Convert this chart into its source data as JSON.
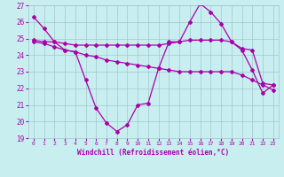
{
  "xlabel": "Windchill (Refroidissement éolien,°C)",
  "background_color": "#c8eef0",
  "grid_color": "#a0c8cc",
  "line_color": "#aa00aa",
  "xlim": [
    -0.5,
    23.5
  ],
  "ylim": [
    19,
    27
  ],
  "yticks": [
    19,
    20,
    21,
    22,
    23,
    24,
    25,
    26,
    27
  ],
  "xticks": [
    0,
    1,
    2,
    3,
    4,
    5,
    6,
    7,
    8,
    9,
    10,
    11,
    12,
    13,
    14,
    15,
    16,
    17,
    18,
    19,
    20,
    21,
    22,
    23
  ],
  "series1_x": [
    0,
    1,
    2,
    3,
    4,
    5,
    6,
    7,
    8,
    9,
    10,
    11,
    12,
    13,
    14,
    15,
    16,
    17,
    18,
    19,
    20,
    21,
    22,
    23
  ],
  "series1_y": [
    26.3,
    25.6,
    24.8,
    24.3,
    24.2,
    22.5,
    20.8,
    19.9,
    19.4,
    19.8,
    21.0,
    21.1,
    23.2,
    24.8,
    24.8,
    26.0,
    27.1,
    26.6,
    25.9,
    24.8,
    24.3,
    23.1,
    21.7,
    22.2
  ],
  "series2_x": [
    0,
    1,
    2,
    3,
    4,
    5,
    6,
    7,
    8,
    9,
    10,
    11,
    12,
    13,
    14,
    15,
    16,
    17,
    18,
    19,
    20,
    21,
    22,
    23
  ],
  "series2_y": [
    24.9,
    24.8,
    24.8,
    24.7,
    24.6,
    24.6,
    24.6,
    24.6,
    24.6,
    24.6,
    24.6,
    24.6,
    24.6,
    24.7,
    24.8,
    24.9,
    24.9,
    24.9,
    24.9,
    24.8,
    24.4,
    24.3,
    22.3,
    22.2
  ],
  "series3_x": [
    0,
    1,
    2,
    3,
    4,
    5,
    6,
    7,
    8,
    9,
    10,
    11,
    12,
    13,
    14,
    15,
    16,
    17,
    18,
    19,
    20,
    21,
    22,
    23
  ],
  "series3_y": [
    24.8,
    24.7,
    24.5,
    24.3,
    24.2,
    24.0,
    23.9,
    23.7,
    23.6,
    23.5,
    23.4,
    23.3,
    23.2,
    23.1,
    23.0,
    23.0,
    23.0,
    23.0,
    23.0,
    23.0,
    22.8,
    22.5,
    22.2,
    21.9
  ]
}
